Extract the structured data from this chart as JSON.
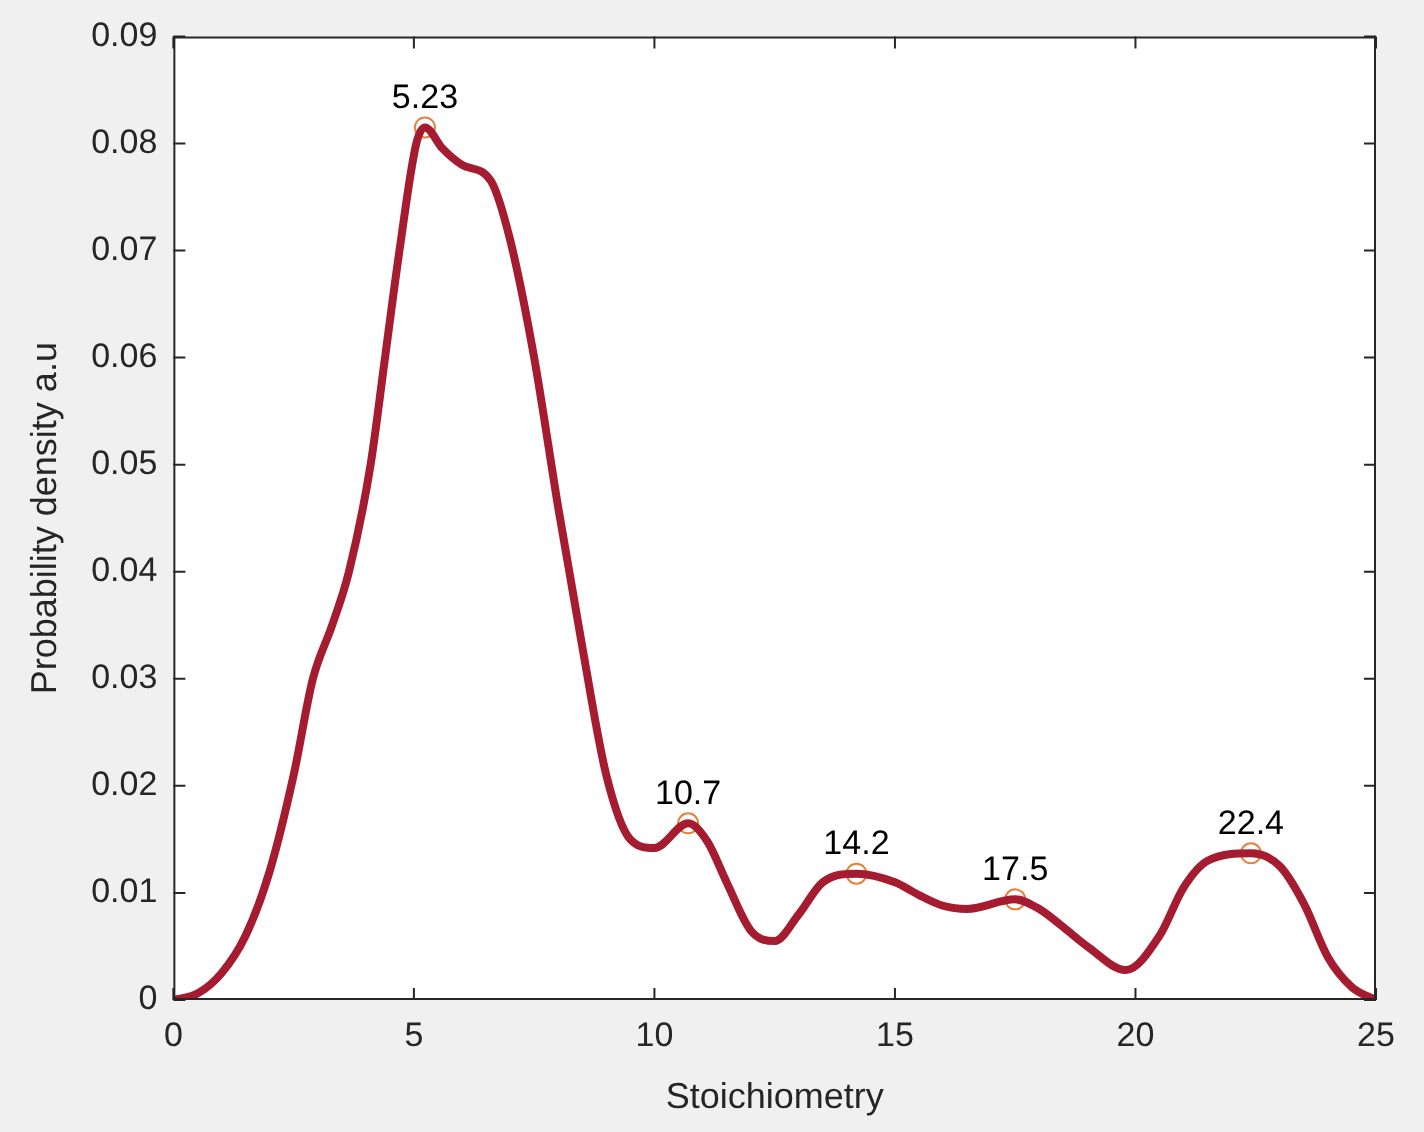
{
  "chart_data": {
    "type": "line",
    "xlabel": "Stoichiometry",
    "ylabel": "Probability density a.u",
    "xlim": [
      0,
      25
    ],
    "xticks": [
      0,
      5,
      10,
      15,
      20,
      25
    ],
    "ylim": [
      0,
      0.09
    ],
    "yticks": [
      0,
      0.01,
      0.02,
      0.03,
      0.04,
      0.05,
      0.06,
      0.07,
      0.08,
      0.09
    ],
    "grid": false,
    "legend": false,
    "series": [
      {
        "color": "#a51c30",
        "marker": "none",
        "x": [
          0,
          0.5,
          1,
          1.5,
          2,
          2.5,
          2.9,
          3.3,
          3.65,
          4.1,
          4.4,
          4.7,
          5.05,
          5.23,
          5.6,
          6,
          6.6,
          7,
          7.5,
          8,
          8.5,
          9,
          9.5,
          10,
          10.7,
          11.1,
          11.5,
          12,
          12.5,
          13,
          13.5,
          14.2,
          15,
          15.5,
          16,
          16.5,
          17.5,
          18,
          18.5,
          19,
          19.8,
          20.5,
          21,
          21.5,
          22.4,
          23,
          23.5,
          24,
          24.5,
          25
        ],
        "values": [
          0,
          0.0006,
          0.0025,
          0.006,
          0.012,
          0.021,
          0.03,
          0.035,
          0.04,
          0.05,
          0.06,
          0.07,
          0.08,
          0.0815,
          0.0795,
          0.078,
          0.0765,
          0.071,
          0.06,
          0.046,
          0.033,
          0.021,
          0.015,
          0.0142,
          0.0165,
          0.0148,
          0.011,
          0.0065,
          0.0055,
          0.008,
          0.011,
          0.0118,
          0.011,
          0.0098,
          0.0088,
          0.0085,
          0.0094,
          0.0085,
          0.0068,
          0.005,
          0.0028,
          0.006,
          0.0105,
          0.013,
          0.0137,
          0.0125,
          0.009,
          0.004,
          0.0012,
          0
        ]
      },
      {
        "type": "scatter",
        "color": "#e8803a",
        "marker": "circle",
        "x": [
          5.23,
          10.7,
          14.2,
          17.5,
          22.4
        ],
        "values": [
          0.0815,
          0.0165,
          0.0118,
          0.0094,
          0.0137
        ]
      }
    ],
    "annotations": [
      {
        "text": "5.23",
        "x": 5.23,
        "y": 0.0815
      },
      {
        "text": "10.7",
        "x": 10.7,
        "y": 0.0165
      },
      {
        "text": "14.2",
        "x": 14.2,
        "y": 0.0118
      },
      {
        "text": "17.5",
        "x": 17.5,
        "y": 0.0094
      },
      {
        "text": "22.4",
        "x": 22.4,
        "y": 0.0137
      }
    ]
  }
}
